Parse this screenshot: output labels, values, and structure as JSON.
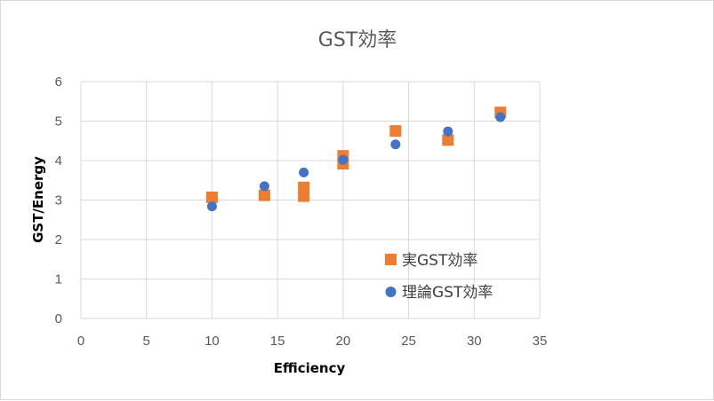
{
  "chart_data": {
    "type": "scatter",
    "title": "GST効率",
    "xlabel": "Efficiency",
    "ylabel": "GST/Energy",
    "xlim": [
      0,
      35
    ],
    "ylim": [
      0,
      6
    ],
    "x_ticks": [
      "0",
      "5",
      "10",
      "15",
      "20",
      "25",
      "30",
      "35"
    ],
    "y_ticks": [
      "0",
      "1",
      "2",
      "3",
      "4",
      "5",
      "6"
    ],
    "grid": true,
    "legend_position": "lower-right",
    "series": [
      {
        "name": "実GST効率",
        "marker": "square",
        "color": "#ED7D31",
        "x": [
          10,
          14,
          17,
          17,
          20,
          20,
          24,
          28,
          32
        ],
        "y": [
          3.07,
          3.12,
          3.1,
          3.32,
          3.92,
          4.12,
          4.75,
          4.52,
          5.22
        ]
      },
      {
        "name": "理論GST効率",
        "marker": "circle",
        "color": "#4472C4",
        "x": [
          10,
          14,
          17,
          20,
          24,
          28,
          32
        ],
        "y": [
          2.84,
          3.35,
          3.7,
          4.02,
          4.41,
          4.74,
          5.1
        ]
      }
    ]
  }
}
